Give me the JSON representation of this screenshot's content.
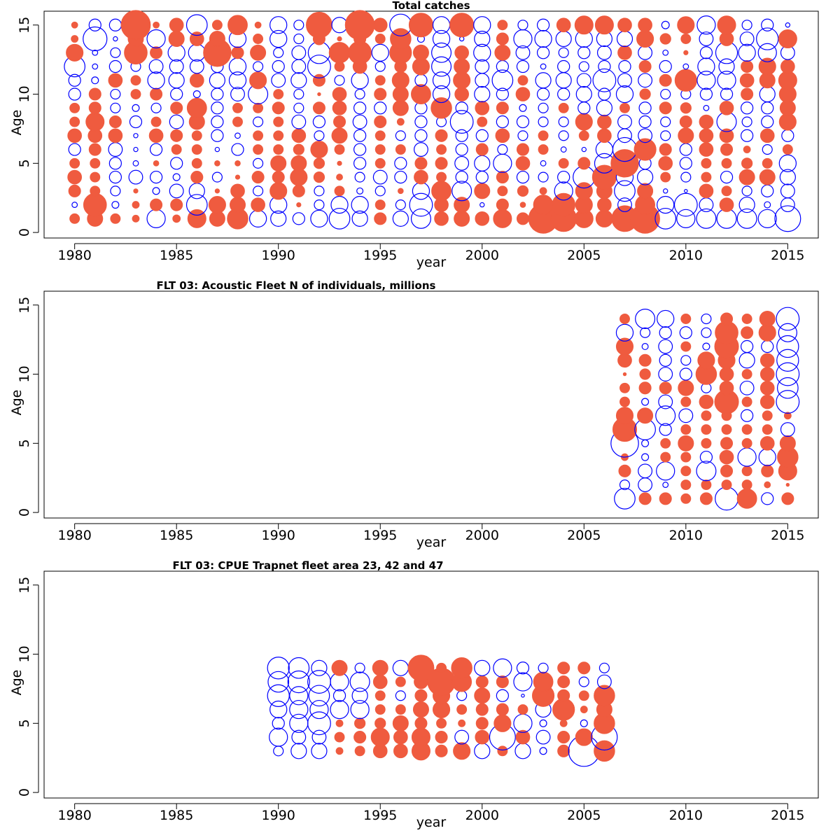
{
  "chart_data": [
    {
      "type": "scatter",
      "subtype": "bubble",
      "title": "Total catches",
      "xlabel": "year",
      "ylabel": "Age",
      "xlim": [
        1978.5,
        2016.5
      ],
      "ylim": [
        -0.4,
        16
      ],
      "xticks": [
        1980,
        1985,
        1990,
        1995,
        2000,
        2005,
        2010,
        2015
      ],
      "yticks": [
        0,
        5,
        10,
        15
      ],
      "legend": "none",
      "colors": {
        "positive": "#ef5b3f",
        "negative": "#0000ff"
      },
      "encoding": "v = signed residual; |v| in 0..1 scales bubble area; >0 filled red, <0 open blue",
      "x": [
        1980,
        1981,
        1982,
        1983,
        1984,
        1985,
        1986,
        1987,
        1988,
        1989,
        1990,
        1991,
        1992,
        1993,
        1994,
        1995,
        1996,
        1997,
        1998,
        1999,
        2000,
        2001,
        2002,
        2003,
        2004,
        2005,
        2006,
        2007,
        2008,
        2009,
        2010,
        2011,
        2012,
        2013,
        2014,
        2015
      ],
      "y": [
        1,
        2,
        3,
        4,
        5,
        6,
        7,
        8,
        9,
        10,
        11,
        12,
        13,
        14,
        15
      ],
      "values": [
        [
          0.1,
          0.25,
          0.1,
          0.05,
          -0.35,
          0.06,
          0.35,
          0.25,
          0.45,
          -0.3,
          -0.25,
          -0.15,
          -0.3,
          -0.45,
          -0.25,
          0.15,
          -0.25,
          -0.4,
          0.2,
          0.25,
          0.2,
          0.35,
          0.15,
          0.9,
          0.7,
          0.35,
          0.3,
          0.7,
          0.9,
          -0.45,
          -0.35,
          -0.4,
          -0.4,
          -0.4,
          -0.35,
          -0.7
        ],
        [
          -0.03,
          0.55,
          -0.05,
          0.05,
          0.15,
          0.15,
          -0.45,
          0.3,
          0.25,
          0.2,
          -0.3,
          0.02,
          -0.1,
          -0.3,
          -0.3,
          0.1,
          -0.1,
          -0.55,
          0.2,
          0.25,
          -0.02,
          0.15,
          0.03,
          0.4,
          0.55,
          0.3,
          0.2,
          -0.2,
          0.4,
          -0.3,
          -0.55,
          -0.2,
          0.2,
          -0.25,
          -0.04,
          -0.2
        ],
        [
          0.15,
          0.1,
          -0.1,
          0.02,
          -0.05,
          -0.2,
          -0.25,
          0.02,
          0.2,
          -0.1,
          0.3,
          0.15,
          -0.1,
          0.1,
          -0.04,
          -0.1,
          0.03,
          -0.3,
          0.4,
          -0.4,
          0.25,
          0.1,
          0.12,
          0.05,
          -0.35,
          0.3,
          0.25,
          -0.45,
          0.25,
          -0.02,
          -0.01,
          0.2,
          0.1,
          -0.1,
          -0.15,
          -0.2
        ],
        [
          0.2,
          0.1,
          -0.15,
          -0.2,
          -0.15,
          -0.05,
          0.15,
          -0.1,
          0.02,
          0.15,
          0.15,
          0.3,
          0.12,
          0.04,
          -0.1,
          -0.2,
          -0.15,
          0.2,
          0.1,
          -0.15,
          -0.15,
          0.15,
          -0.15,
          -0.1,
          -0.15,
          -0.5,
          0.6,
          -0.3,
          -0.25,
          0.1,
          -0.1,
          0.1,
          -0.15,
          0.25,
          0.25,
          -0.25
        ],
        [
          0.1,
          0.1,
          -0.15,
          -0.03,
          0.03,
          -0.15,
          0.1,
          0.03,
          0.03,
          -0.1,
          0.25,
          0.25,
          0.12,
          0.02,
          -0.15,
          0.1,
          -0.15,
          0.15,
          0.15,
          -0.2,
          -0.25,
          -0.35,
          0.2,
          -0.03,
          0.1,
          0.15,
          -0.4,
          0.8,
          -0.15,
          0.2,
          -0.15,
          0.1,
          0.1,
          0.12,
          0.1,
          -0.3
        ],
        [
          -0.15,
          0.15,
          -0.2,
          -0.02,
          -0.15,
          0.1,
          0.1,
          -0.02,
          -0.15,
          0.1,
          0.1,
          0.12,
          0.3,
          0.1,
          -0.15,
          0.1,
          0.1,
          -0.2,
          0.1,
          -0.15,
          0.15,
          -0.1,
          0.15,
          0.1,
          -0.03,
          -0.02,
          -0.3,
          -0.6,
          0.5,
          0.15,
          -0.15,
          0.2,
          0.15,
          0.05,
          -0.1,
          0.1
        ],
        [
          0.2,
          0.2,
          0.2,
          -0.02,
          0.2,
          0.15,
          0.1,
          -0.15,
          -0.03,
          0.1,
          0.1,
          0.2,
          -0.1,
          0.25,
          -0.15,
          0.1,
          -0.1,
          -0.15,
          0.15,
          -0.15,
          -0.15,
          0.2,
          -0.1,
          0.1,
          -0.1,
          0.1,
          0.2,
          -0.2,
          -0.2,
          -0.1,
          0.25,
          0.2,
          0.2,
          -0.15,
          0.2,
          -0.15
        ],
        [
          0.1,
          0.35,
          0.15,
          -0.15,
          0.1,
          -0.2,
          0.25,
          -0.15,
          0.1,
          -0.1,
          0.1,
          -0.2,
          -0.15,
          0.15,
          -0.2,
          0.15,
          0.05,
          -0.15,
          -0.1,
          -0.55,
          0.1,
          -0.15,
          -0.15,
          -0.1,
          -0.1,
          0.3,
          0.2,
          -0.2,
          -0.15,
          -0.1,
          0.15,
          0.2,
          -0.4,
          -0.1,
          -0.15,
          0.3
        ],
        [
          0.1,
          0.15,
          -0.1,
          -0.05,
          -0.1,
          0.15,
          0.4,
          -0.15,
          0.1,
          0.1,
          0.15,
          -0.1,
          0.15,
          0.2,
          -0.15,
          -0.15,
          0.25,
          -0.15,
          0.45,
          -0.15,
          0.2,
          0.15,
          -0.05,
          -0.1,
          0.1,
          -0.15,
          -0.25,
          0.1,
          -0.15,
          0.15,
          0.12,
          -0.03,
          0.2,
          -0.15,
          -0.15,
          0.25
        ],
        [
          -0.15,
          0.15,
          -0.1,
          0.1,
          0.15,
          -0.15,
          -0.05,
          -0.15,
          -0.2,
          -0.4,
          0.1,
          -0.1,
          0.01,
          0.2,
          -0.1,
          0.15,
          0.25,
          0.4,
          -0.3,
          0.2,
          -0.25,
          -0.15,
          0.2,
          -0.15,
          -0.15,
          -0.25,
          -0.15,
          -0.3,
          0.12,
          -0.1,
          -0.1,
          -0.15,
          -0.15,
          0.15,
          -0.25,
          0.3
        ],
        [
          -0.15,
          -0.05,
          0.2,
          0.1,
          -0.3,
          -0.25,
          0.2,
          -0.25,
          -0.3,
          0.3,
          -0.2,
          -0.25,
          0.15,
          -0.1,
          -0.3,
          0.1,
          0.3,
          -0.15,
          -0.3,
          0.3,
          -0.2,
          -0.45,
          0.1,
          -0.25,
          -0.25,
          -0.2,
          -0.55,
          -0.2,
          -0.2,
          0.15,
          0.5,
          -0.35,
          -0.35,
          0.2,
          0.25,
          0.35
        ],
        [
          -0.45,
          -0.03,
          -0.15,
          -0.1,
          -0.2,
          -0.2,
          -0.2,
          -0.15,
          -0.3,
          -0.1,
          -0.15,
          -0.2,
          -0.55,
          0.1,
          0.2,
          -0.1,
          0.15,
          0.3,
          -0.4,
          0.25,
          -0.2,
          -0.15,
          -0.15,
          -0.03,
          -0.15,
          -0.1,
          -0.15,
          -0.15,
          0.15,
          -0.15,
          -0.03,
          -0.3,
          -0.25,
          0.15,
          0.3,
          0.2
        ],
        [
          0.3,
          -0.03,
          -0.1,
          0.55,
          0.15,
          -0.3,
          -0.3,
          0.8,
          0.15,
          0.25,
          -0.1,
          -0.2,
          -0.5,
          0.45,
          0.55,
          -0.3,
          0.5,
          0.25,
          -0.4,
          0.2,
          -0.3,
          0.25,
          -0.2,
          -0.15,
          -0.1,
          -0.15,
          -0.2,
          0.2,
          -0.2,
          -0.03,
          0.02,
          -0.15,
          -0.5,
          -0.3,
          -0.35,
          -0.2
        ],
        [
          0.05,
          -0.6,
          -0.02,
          0.25,
          -0.35,
          0.25,
          0.2,
          0.25,
          -0.3,
          0.1,
          -0.3,
          -0.1,
          0.15,
          0.02,
          0.15,
          0.1,
          0.45,
          -0.05,
          -0.3,
          -0.02,
          -0.25,
          0.15,
          -0.35,
          -0.3,
          -0.25,
          -0.3,
          -0.25,
          -0.25,
          0.3,
          0.12,
          0.1,
          -0.2,
          0.2,
          -0.2,
          -0.5,
          0.35
        ],
        [
          0.04,
          -0.15,
          -0.15,
          0.9,
          0.04,
          0.2,
          -0.45,
          0.1,
          0.4,
          0.04,
          -0.3,
          -0.1,
          0.7,
          -0.25,
          0.9,
          0.2,
          -0.5,
          0.6,
          -0.3,
          0.6,
          -0.3,
          0.1,
          -0.1,
          -0.15,
          0.2,
          0.35,
          0.35,
          0.2,
          0.2,
          -0.06,
          0.3,
          -0.35,
          0.35,
          -0.1,
          -0.15,
          -0.02
        ]
      ]
    },
    {
      "type": "scatter",
      "subtype": "bubble",
      "title": "FLT 03: Acoustic Fleet   N of individuals, millions",
      "xlabel": "year",
      "ylabel": "Age",
      "xlim": [
        1978.5,
        2016.5
      ],
      "ylim": [
        -0.4,
        16
      ],
      "xticks": [
        1980,
        1985,
        1990,
        1995,
        2000,
        2005,
        2010,
        2015
      ],
      "yticks": [
        0,
        5,
        10,
        15
      ],
      "legend": "none",
      "colors": {
        "positive": "#ef5b3f",
        "negative": "#0000ff"
      },
      "x": [
        2007,
        2008,
        2009,
        2010,
        2011,
        2012,
        2013,
        2014,
        2015
      ],
      "y": [
        1,
        2,
        3,
        4,
        5,
        6,
        7,
        8,
        9,
        10,
        11,
        12,
        13,
        14
      ],
      "values": [
        [
          -0.45,
          0.15,
          0.15,
          0.1,
          0.15,
          -0.55,
          0.4,
          -0.15,
          0.15
        ],
        [
          -0.1,
          -0.2,
          -0.03,
          0.1,
          0.1,
          0.1,
          0.1,
          0.04,
          0.01
        ],
        [
          0.15,
          -0.2,
          -0.35,
          0.1,
          -0.4,
          0.15,
          0.1,
          0.15,
          0.35
        ],
        [
          0.05,
          -0.05,
          0.1,
          0.1,
          -0.15,
          0.2,
          -0.35,
          -0.3,
          0.45
        ],
        [
          -0.8,
          -0.05,
          0.1,
          0.25,
          0.1,
          0.15,
          0.1,
          0.2,
          0.25
        ],
        [
          0.6,
          -0.45,
          -0.15,
          0.1,
          0.1,
          0.1,
          0.1,
          0.1,
          -0.2
        ],
        [
          0.3,
          0.25,
          -0.4,
          -0.2,
          0.1,
          0.1,
          -0.15,
          0.1,
          0.05
        ],
        [
          0.1,
          -0.05,
          -0.2,
          0.1,
          0.2,
          0.6,
          0.1,
          0.2,
          -0.55
        ],
        [
          0.1,
          0.15,
          0.15,
          0.25,
          -0.1,
          0.2,
          -0.2,
          0.2,
          -0.45
        ],
        [
          0.01,
          0.12,
          -0.2,
          -0.15,
          0.45,
          0.2,
          0.1,
          0.2,
          -0.55
        ],
        [
          0.2,
          0.15,
          -0.15,
          -0.1,
          0.3,
          0.3,
          -0.25,
          0.2,
          -0.5
        ],
        [
          0.3,
          -0.04,
          -0.2,
          0.1,
          -0.05,
          0.6,
          -0.15,
          -0.15,
          -0.5
        ],
        [
          -0.3,
          -0.1,
          -0.15,
          -0.15,
          -0.1,
          0.55,
          0.15,
          0.3,
          -0.35
        ],
        [
          0.1,
          -0.4,
          -0.3,
          0.1,
          -0.1,
          0.15,
          0.1,
          0.25,
          -0.55
        ]
      ]
    },
    {
      "type": "scatter",
      "subtype": "bubble",
      "title": "FLT 03: CPUE Trapnet fleet area 23, 42 and 47",
      "xlabel": "year",
      "ylabel": "Age",
      "xlim": [
        1978.5,
        2016.5
      ],
      "ylim": [
        -0.4,
        16
      ],
      "xticks": [
        1980,
        1985,
        1990,
        1995,
        2000,
        2005,
        2010,
        2015
      ],
      "yticks": [
        0,
        5,
        10,
        15
      ],
      "legend": "none",
      "colors": {
        "positive": "#ef5b3f",
        "negative": "#0000ff"
      },
      "x": [
        1990,
        1991,
        1992,
        1993,
        1994,
        1995,
        1996,
        1997,
        1998,
        1999,
        2000,
        2001,
        2002,
        2003,
        2004,
        2005,
        2006
      ],
      "y": [
        3,
        4,
        5,
        6,
        7,
        8,
        9
      ],
      "values": [
        [
          -0.1,
          -0.25,
          -0.25,
          0.05,
          0.1,
          0.2,
          0.2,
          0.35,
          0.15,
          0.3,
          -0.25,
          0.1,
          -0.25,
          -0.05,
          0.15,
          -1.0,
          0.45
        ],
        [
          -0.35,
          -0.2,
          -0.2,
          0.1,
          0.15,
          0.35,
          0.2,
          0.35,
          0.15,
          -0.2,
          0.2,
          -0.7,
          0.2,
          -0.2,
          0.15,
          0.3,
          -0.7
        ],
        [
          -0.15,
          -0.35,
          -0.55,
          0.05,
          0.12,
          0.12,
          0.25,
          0.15,
          0.1,
          0.05,
          0.15,
          0.3,
          -0.35,
          -0.05,
          0.05,
          -0.05,
          0.45
        ],
        [
          -0.3,
          -0.35,
          -0.35,
          -0.35,
          -0.35,
          0.1,
          0.1,
          0.25,
          0.3,
          0.1,
          0.15,
          0.15,
          0.1,
          -0.25,
          0.5,
          0.05,
          0.25
        ],
        [
          -0.5,
          -0.35,
          -0.45,
          -0.15,
          -0.25,
          0.1,
          -0.1,
          0.15,
          0.3,
          -0.1,
          0.25,
          -0.15,
          -0.01,
          0.5,
          0.15,
          0.1,
          0.45
        ],
        [
          -0.45,
          -0.5,
          -0.55,
          -0.35,
          -0.4,
          0.2,
          0.1,
          0.2,
          0.8,
          0.4,
          0.15,
          0.15,
          -0.35,
          0.4,
          0.15,
          -0.1,
          -0.2
        ],
        [
          -0.5,
          -0.45,
          -0.25,
          0.25,
          -0.1,
          0.25,
          -0.25,
          0.7,
          0.1,
          0.45,
          -0.25,
          -0.35,
          -0.15,
          -0.1,
          0.15,
          0.15,
          -0.1
        ]
      ]
    }
  ]
}
